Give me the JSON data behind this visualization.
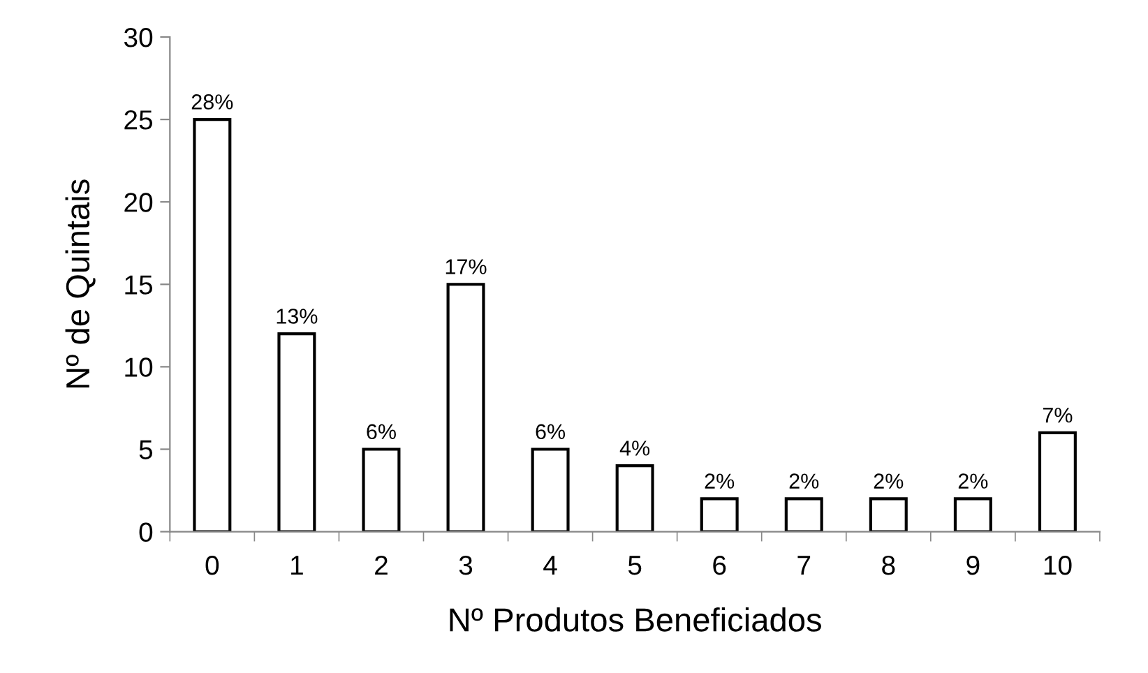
{
  "chart_data": {
    "type": "bar",
    "xlabel": "Nº Produtos Beneficiados",
    "ylabel": "Nº de Quintais",
    "categories": [
      "0",
      "1",
      "2",
      "3",
      "4",
      "5",
      "6",
      "7",
      "8",
      "9",
      "10"
    ],
    "values": [
      25,
      12,
      5,
      15,
      5,
      4,
      2,
      2,
      2,
      2,
      6
    ],
    "annotations": [
      {
        "text": "28%",
        "x": "0",
        "y": 25
      },
      {
        "text": "13%",
        "x": "1",
        "y": 12
      },
      {
        "text": "6%",
        "x": "2",
        "y": 5
      },
      {
        "text": "17%",
        "x": "3",
        "y": 15
      },
      {
        "text": "6%",
        "x": "4",
        "y": 5
      },
      {
        "text": "4%",
        "x": "5",
        "y": 4
      },
      {
        "text": "2%",
        "x": "6",
        "y": 2
      },
      {
        "text": "2%",
        "x": "7",
        "y": 2
      },
      {
        "text": "2%",
        "x": "8",
        "y": 2
      },
      {
        "text": "2%",
        "x": "9",
        "y": 2
      },
      {
        "text": "7%",
        "x": "10",
        "y": 6
      }
    ],
    "color": "#ffffff",
    "ylim": [
      0,
      30
    ],
    "yticks": [
      0,
      5,
      10,
      15,
      20,
      25,
      30
    ],
    "grid": false,
    "legend": false
  }
}
